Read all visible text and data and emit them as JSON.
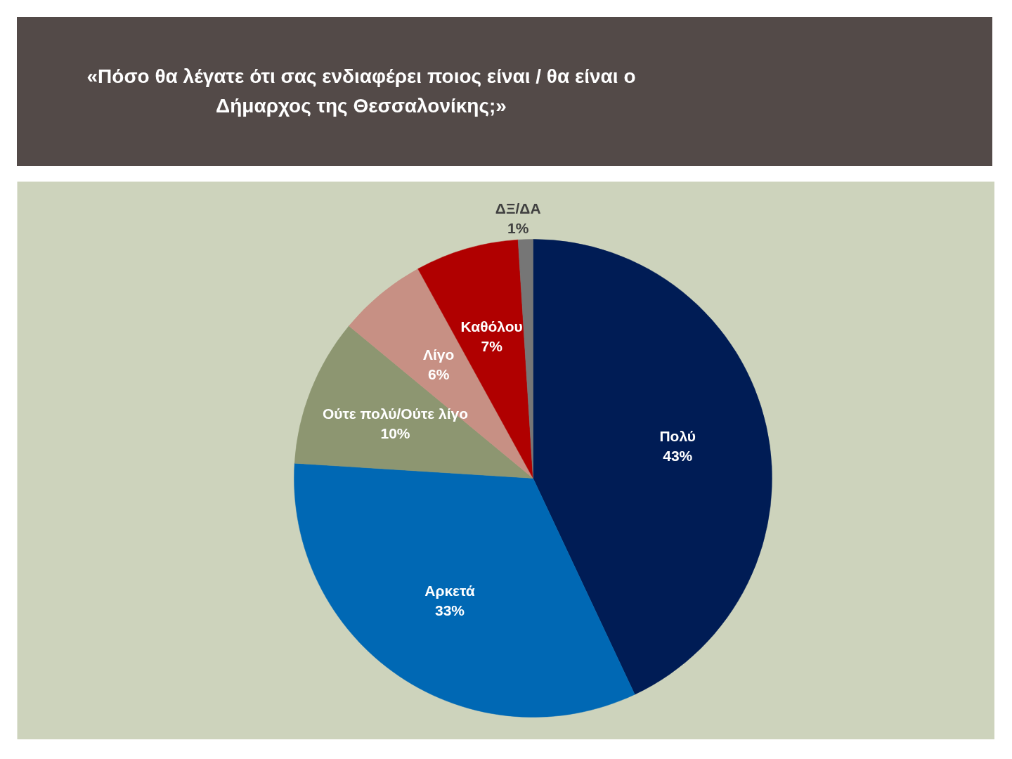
{
  "chart_data": {
    "type": "pie",
    "title": "«Πόσο θα λέγατε ότι σας ενδιαφέρει ποιος είναι / θα είναι ο Δήμαρχος της Θεσσαλονίκης;»",
    "categories": [
      "Πολύ",
      "Αρκετά",
      "Ούτε πολύ/Ούτε λίγο",
      "Λίγο",
      "Καθόλου",
      "ΔΞ/ΔΑ"
    ],
    "values": [
      43,
      33,
      10,
      6,
      7,
      1
    ],
    "value_labels": [
      "43%",
      "33%",
      "10%",
      "6%",
      "7%",
      "1%"
    ],
    "colors": [
      "#001c55",
      "#0068b4",
      "#8d9671",
      "#c79084",
      "#b00000",
      "#767676"
    ]
  }
}
